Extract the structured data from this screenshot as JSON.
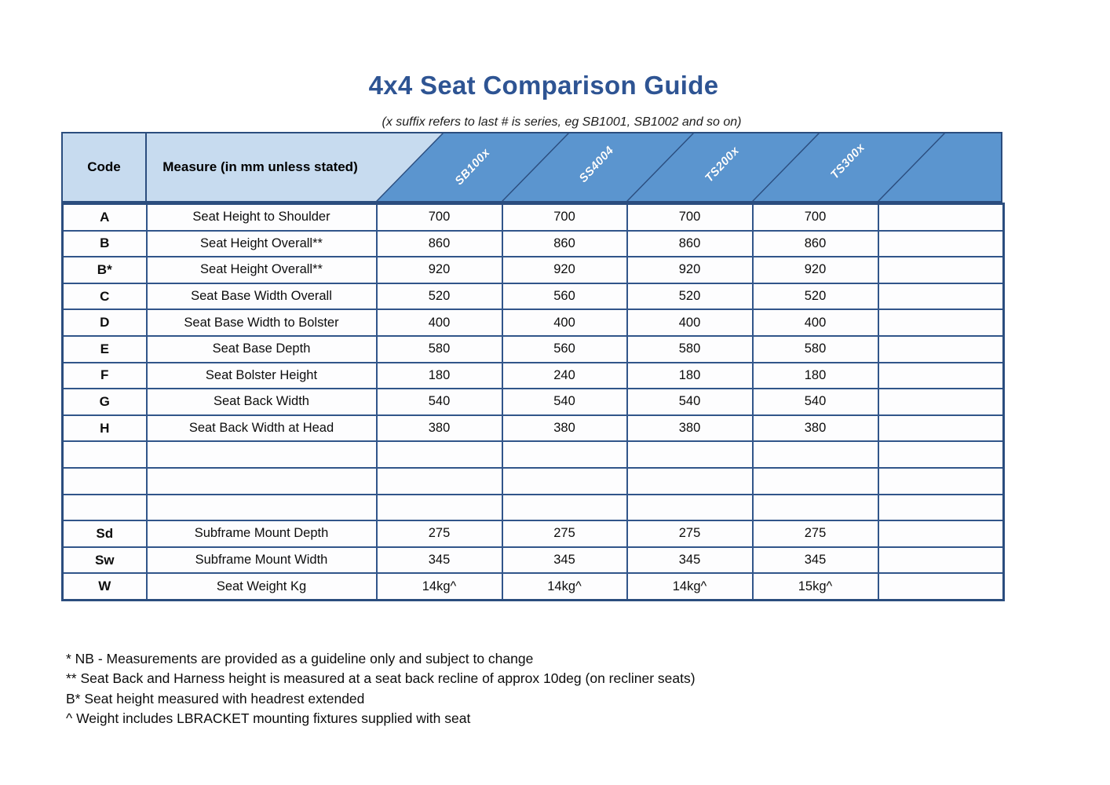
{
  "title": "4x4 Seat Comparison Guide",
  "subtitle": "(x suffix refers to last # is series, eg SB1001, SB1002 and so on)",
  "colors": {
    "title_blue": "#2e5493",
    "header_dark_blue": "#5b95cf",
    "header_light_blue": "#c7dbef",
    "grid_border_navy": "#2b4d7e"
  },
  "table": {
    "code_header": "Code",
    "measure_header": "Measure (in mm unless stated)",
    "product_columns": [
      "SB100x",
      "SS4004",
      "TS200x",
      "TS300x"
    ],
    "rows": [
      {
        "code": "A",
        "measure": "Seat Height to Shoulder",
        "values": [
          "700",
          "700",
          "700",
          "700",
          ""
        ]
      },
      {
        "code": "B",
        "measure": "Seat Height Overall**",
        "values": [
          "860",
          "860",
          "860",
          "860",
          ""
        ]
      },
      {
        "code": "B*",
        "measure": "Seat Height Overall**",
        "values": [
          "920",
          "920",
          "920",
          "920",
          ""
        ]
      },
      {
        "code": "C",
        "measure": "Seat Base Width Overall",
        "values": [
          "520",
          "560",
          "520",
          "520",
          ""
        ]
      },
      {
        "code": "D",
        "measure": "Seat Base Width to Bolster",
        "values": [
          "400",
          "400",
          "400",
          "400",
          ""
        ]
      },
      {
        "code": "E",
        "measure": "Seat Base Depth",
        "values": [
          "580",
          "560",
          "580",
          "580",
          ""
        ]
      },
      {
        "code": "F",
        "measure": "Seat Bolster Height",
        "values": [
          "180",
          "240",
          "180",
          "180",
          ""
        ]
      },
      {
        "code": "G",
        "measure": "Seat Back Width",
        "values": [
          "540",
          "540",
          "540",
          "540",
          ""
        ]
      },
      {
        "code": "H",
        "measure": "Seat Back Width at Head",
        "values": [
          "380",
          "380",
          "380",
          "380",
          ""
        ]
      },
      {
        "code": "",
        "measure": "",
        "values": [
          "",
          "",
          "",
          "",
          ""
        ]
      },
      {
        "code": "",
        "measure": "",
        "values": [
          "",
          "",
          "",
          "",
          ""
        ]
      },
      {
        "code": "",
        "measure": "",
        "values": [
          "",
          "",
          "",
          "",
          ""
        ]
      },
      {
        "code": "Sd",
        "measure": "Subframe Mount Depth",
        "values": [
          "275",
          "275",
          "275",
          "275",
          ""
        ]
      },
      {
        "code": "Sw",
        "measure": "Subframe Mount Width",
        "values": [
          "345",
          "345",
          "345",
          "345",
          ""
        ]
      },
      {
        "code": "W",
        "measure": "Seat Weight Kg",
        "values": [
          "14kg^",
          "14kg^",
          "14kg^",
          "15kg^",
          ""
        ]
      }
    ]
  },
  "notes": [
    "* NB - Measurements are provided as a guideline only and subject to change",
    "** Seat Back and Harness height is measured at a seat back recline of approx 10deg (on recliner seats)",
    "B* Seat height measured with headrest extended",
    "^ Weight includes LBRACKET mounting fixtures supplied with seat"
  ]
}
